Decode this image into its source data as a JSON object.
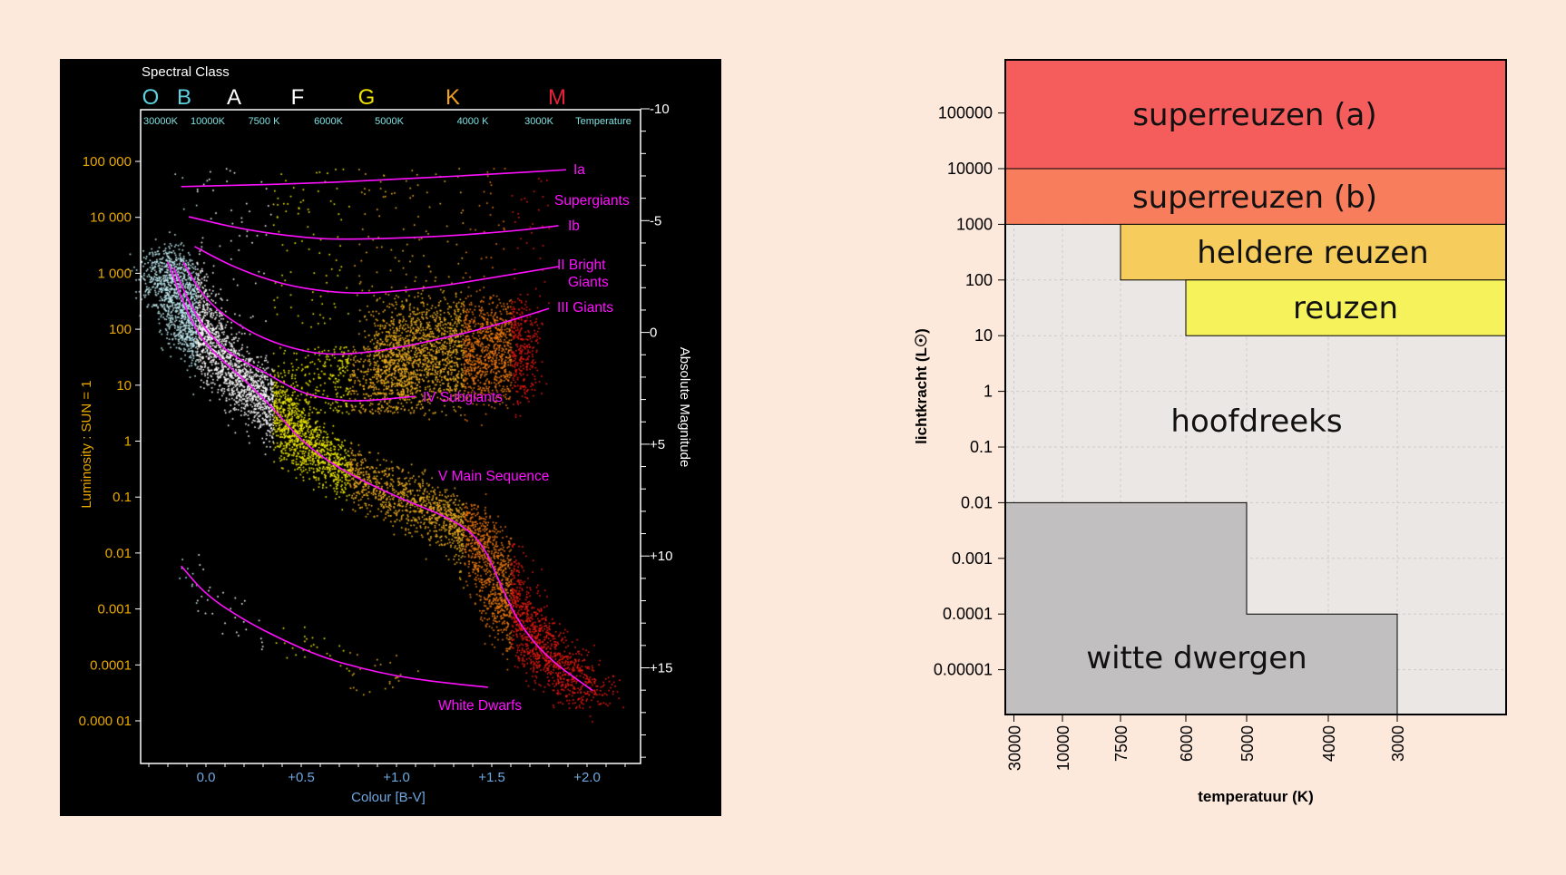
{
  "hr_diagram": {
    "spectral_class_title": "Spectral Class",
    "spectral_letters": [
      {
        "letter": "O",
        "color": "#5fd0e0"
      },
      {
        "letter": "B",
        "color": "#5fd0e0"
      },
      {
        "letter": "A",
        "color": "#ffffff"
      },
      {
        "letter": "F",
        "color": "#ffffff"
      },
      {
        "letter": "G",
        "color": "#f0e000"
      },
      {
        "letter": "K",
        "color": "#f0a020"
      },
      {
        "letter": "M",
        "color": "#e8203c"
      }
    ],
    "temperatures": [
      "30000K",
      "10000K",
      "7500 K",
      "6000K",
      "5000K",
      "4000 K",
      "3000K"
    ],
    "temperature_label": "Temperature",
    "luminosity_ticks": [
      "100 000",
      "10 000",
      "1 000",
      "100",
      "10",
      "1",
      "0.1",
      "0.01",
      "0.001",
      "0.0001",
      "0.000 01"
    ],
    "magnitude_ticks": [
      "-10",
      "-5",
      "0",
      "+5",
      "+10",
      "+15"
    ],
    "colour_ticks": [
      "0.0",
      "+0.5",
      "+1.0",
      "+1.5",
      "+2.0"
    ],
    "ylabel": "Luminosity : SUN = 1",
    "y2label": "Absolute Magnitude",
    "xlabel": "Colour [B-V]",
    "curve_labels": {
      "ia": "Ia",
      "supergiants": "Supergiants",
      "ib": "Ib",
      "ii_bright": "II Bright",
      "ii_giants": "Giants",
      "iii": "III Giants",
      "iv": "IV Subgiants",
      "v": "V Main Sequence",
      "wd": "White Dwarfs"
    },
    "curve_color": "#ff10ff"
  },
  "chart_data": [
    {
      "type": "line",
      "xlabel": "Colour [B-V]",
      "ylabel": "Luminosity : SUN = 1",
      "y2label": "Absolute Magnitude",
      "x_range": [
        -0.3,
        2.25
      ],
      "y_scale": "log",
      "y_range_log10": [
        -5.8,
        5.9
      ],
      "series": [
        {
          "name": "Ia",
          "bv": [
            -0.13,
            0.5,
            1.0,
            1.5,
            1.89
          ],
          "log_lum": [
            4.55,
            4.6,
            4.68,
            4.77,
            4.85
          ]
        },
        {
          "name": "Ib",
          "bv": [
            -0.09,
            0.2,
            0.5,
            0.73,
            1.2,
            1.6,
            1.85
          ],
          "log_lum": [
            4.01,
            3.78,
            3.64,
            3.6,
            3.65,
            3.75,
            3.85
          ]
        },
        {
          "name": "II Bright Giants",
          "bv": [
            -0.06,
            0.15,
            0.4,
            0.65,
            0.88,
            1.2,
            1.5,
            1.85
          ],
          "log_lum": [
            3.48,
            3.1,
            2.8,
            2.66,
            2.64,
            2.75,
            2.92,
            3.12
          ]
        },
        {
          "name": "III Giants",
          "bv": [
            -0.12,
            0.0,
            0.2,
            0.4,
            0.63,
            0.9,
            1.2,
            1.5,
            1.8
          ],
          "log_lum": [
            3.2,
            2.5,
            2.0,
            1.7,
            1.53,
            1.6,
            1.8,
            2.05,
            2.37
          ]
        },
        {
          "name": "IV Subgiants",
          "bv": [
            -0.17,
            -0.05,
            0.1,
            0.3,
            0.5,
            0.7,
            0.85,
            1.1
          ],
          "log_lum": [
            3.1,
            2.2,
            1.6,
            1.25,
            0.85,
            0.72,
            0.72,
            0.8
          ]
        },
        {
          "name": "V Main Sequence",
          "bv": [
            -0.2,
            -0.1,
            0.0,
            0.2,
            0.35,
            0.5,
            0.7,
            1.0,
            1.3,
            1.45,
            1.55,
            1.65,
            1.8,
            2.03
          ],
          "log_lum": [
            3.2,
            2.3,
            1.7,
            1.1,
            0.6,
            0.0,
            -0.5,
            -1.0,
            -1.4,
            -1.8,
            -2.6,
            -3.3,
            -3.9,
            -4.46
          ]
        },
        {
          "name": "White Dwarfs",
          "bv": [
            -0.13,
            0.0,
            0.2,
            0.4,
            0.6,
            0.8,
            1.0,
            1.2,
            1.48
          ],
          "log_lum": [
            -2.23,
            -2.75,
            -3.2,
            -3.55,
            -3.85,
            -4.05,
            -4.2,
            -4.3,
            -4.4
          ]
        }
      ]
    },
    {
      "type": "area",
      "xlabel": "temperatuur (K)",
      "ylabel": "lichtkracht (L☉)",
      "y_scale": "log",
      "x_ticks": [
        "30000",
        "10000",
        "7500",
        "6000",
        "5000",
        "4000",
        "3000"
      ],
      "y_ticks": [
        "100000",
        "10000",
        "1000",
        "100",
        "10",
        "1",
        "0.1",
        "0.01",
        "0.001",
        "0.0001",
        "0.00001"
      ],
      "grid": true,
      "background_color": "#ebe7e4",
      "regions": [
        {
          "label": "superreuzen (a)",
          "color": "#f55c5c",
          "t_from": "30000",
          "t_to": "3000",
          "lum_min": 10000,
          "lum_max": null
        },
        {
          "label": "superreuzen (b)",
          "color": "#f77d5c",
          "t_from": "30000",
          "t_to": "3000",
          "lum_min": 1000,
          "lum_max": 10000
        },
        {
          "label": "heldere reuzen",
          "color": "#f6cd5c",
          "t_from": "7500",
          "t_to": "3000",
          "lum_min": 100,
          "lum_max": 1000
        },
        {
          "label": "reuzen",
          "color": "#f5f25c",
          "t_from": "6000",
          "t_to": "3000",
          "lum_min": 10,
          "lum_max": 100
        },
        {
          "label": "hoofdreeks",
          "color": "#ebe7e4"
        },
        {
          "label": "witte dwergen",
          "color": "#c1bfbf",
          "steps": [
            {
              "t_to": "5000",
              "lum_min": 0.0001,
              "lum_max": 0.01
            },
            {
              "t_to": "3000",
              "lum_min": null,
              "lum_max": 0.0001
            }
          ]
        }
      ]
    }
  ]
}
